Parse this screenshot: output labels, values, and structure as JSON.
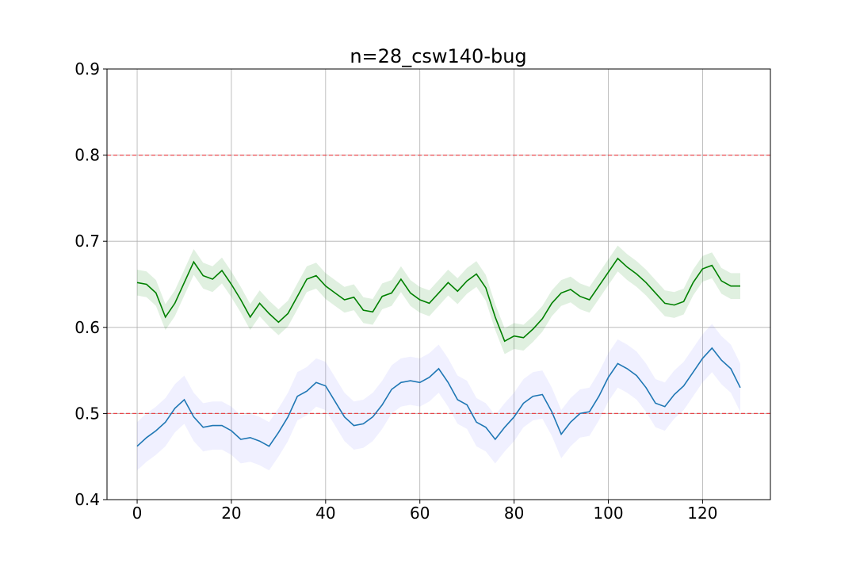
{
  "chart_data": {
    "type": "line",
    "title": "n=28_csw140-bug",
    "xlabel": "",
    "ylabel": "",
    "xlim": [
      -6.4,
      134.4
    ],
    "ylim": [
      0.4,
      0.9
    ],
    "xticks": [
      0,
      20,
      40,
      60,
      80,
      100,
      120
    ],
    "yticks": [
      0.4,
      0.5,
      0.6,
      0.7,
      0.8,
      0.9
    ],
    "xtick_labels": [
      "0",
      "20",
      "40",
      "60",
      "80",
      "100",
      "120"
    ],
    "ytick_labels": [
      "0.4",
      "0.5",
      "0.6",
      "0.7",
      "0.8",
      "0.9"
    ],
    "grid": true,
    "reference_lines": [
      {
        "y": 0.8,
        "color": "#e8474b",
        "style": "dashed"
      },
      {
        "y": 0.5,
        "color": "#e8474b",
        "style": "dashed"
      }
    ],
    "x": [
      0,
      2,
      4,
      6,
      8,
      10,
      12,
      14,
      16,
      18,
      20,
      22,
      24,
      26,
      28,
      30,
      32,
      34,
      36,
      38,
      40,
      42,
      44,
      46,
      48,
      50,
      52,
      54,
      56,
      58,
      60,
      62,
      64,
      66,
      68,
      70,
      72,
      74,
      76,
      78,
      80,
      82,
      84,
      86,
      88,
      90,
      92,
      94,
      96,
      98,
      100,
      102,
      104,
      106,
      108,
      110,
      112,
      114,
      116,
      118,
      120,
      122,
      124,
      126,
      128
    ],
    "series": [
      {
        "color": "#008000",
        "band_color": "#008000",
        "band_halfwidth": 0.015,
        "values": [
          0.652,
          0.65,
          0.64,
          0.612,
          0.628,
          0.652,
          0.676,
          0.66,
          0.656,
          0.666,
          0.65,
          0.632,
          0.612,
          0.628,
          0.616,
          0.606,
          0.616,
          0.636,
          0.656,
          0.66,
          0.648,
          0.64,
          0.632,
          0.635,
          0.62,
          0.618,
          0.636,
          0.64,
          0.656,
          0.64,
          0.632,
          0.628,
          0.64,
          0.652,
          0.642,
          0.654,
          0.662,
          0.646,
          0.612,
          0.584,
          0.59,
          0.588,
          0.598,
          0.61,
          0.628,
          0.64,
          0.644,
          0.636,
          0.632,
          0.648,
          0.664,
          0.68,
          0.67,
          0.662,
          0.652,
          0.64,
          0.628,
          0.626,
          0.63,
          0.652,
          0.668,
          0.672,
          0.654,
          0.648,
          0.648
        ]
      },
      {
        "color": "#1f77b4",
        "band_color": "#8080ff",
        "band_halfwidth": 0.028,
        "values": [
          0.462,
          0.472,
          0.48,
          0.49,
          0.506,
          0.516,
          0.496,
          0.484,
          0.486,
          0.486,
          0.48,
          0.47,
          0.472,
          0.468,
          0.462,
          0.478,
          0.496,
          0.52,
          0.526,
          0.536,
          0.532,
          0.514,
          0.496,
          0.486,
          0.488,
          0.496,
          0.51,
          0.528,
          0.536,
          0.538,
          0.536,
          0.542,
          0.552,
          0.536,
          0.516,
          0.51,
          0.49,
          0.484,
          0.47,
          0.484,
          0.496,
          0.512,
          0.52,
          0.522,
          0.502,
          0.476,
          0.49,
          0.5,
          0.502,
          0.52,
          0.542,
          0.558,
          0.552,
          0.544,
          0.53,
          0.512,
          0.508,
          0.522,
          0.532,
          0.548,
          0.564,
          0.576,
          0.562,
          0.552,
          0.53
        ]
      }
    ]
  }
}
